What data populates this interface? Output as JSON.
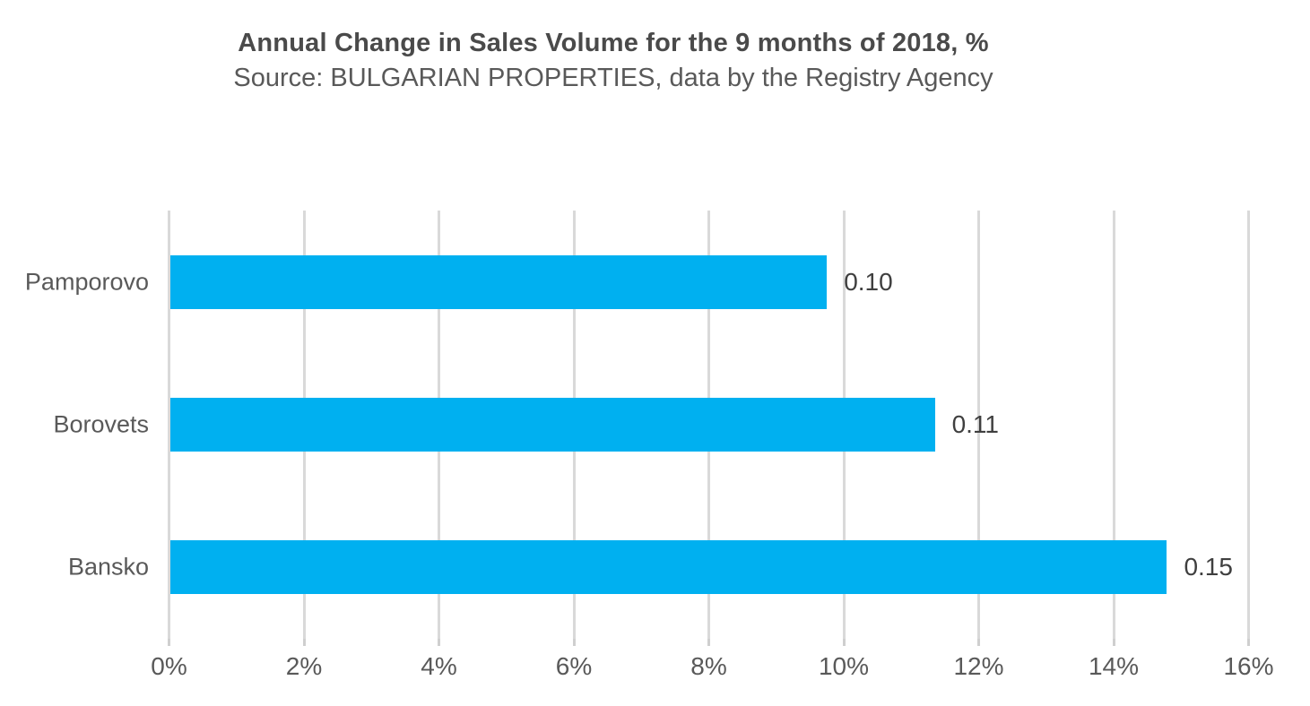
{
  "chart": {
    "title": "Annual Change in Sales Volume for the 9 months of 2018, %",
    "subtitle": "Source: BULGARIAN PROPERTIES, data by the Registry Agency"
  },
  "chart_data": {
    "type": "bar",
    "orientation": "horizontal",
    "title": "Annual Change in Sales Volume for the 9 months of 2018, %",
    "subtitle": "Source: BULGARIAN PROPERTIES, data by the Registry Agency",
    "categories": [
      "Pamporovo",
      "Borovets",
      "Bansko"
    ],
    "category_order": "top-to-bottom",
    "bar_lengths_pct": [
      9.75,
      11.35,
      14.79
    ],
    "data_labels": [
      "0.10",
      "0.11",
      "0.15"
    ],
    "x_axis": {
      "min": 0,
      "max": 16,
      "step": 2,
      "unit": "%",
      "tick_labels": [
        "0%",
        "2%",
        "4%",
        "6%",
        "8%",
        "10%",
        "12%",
        "14%",
        "16%"
      ]
    },
    "grid": true,
    "legend": false,
    "colors": {
      "bar": "#00b0f0",
      "gridline": "#d9d9d9",
      "title_text": "#4a4a4a",
      "axis_text": "#595959",
      "data_label_text": "#3f3f3f",
      "background": "#ffffff"
    }
  }
}
